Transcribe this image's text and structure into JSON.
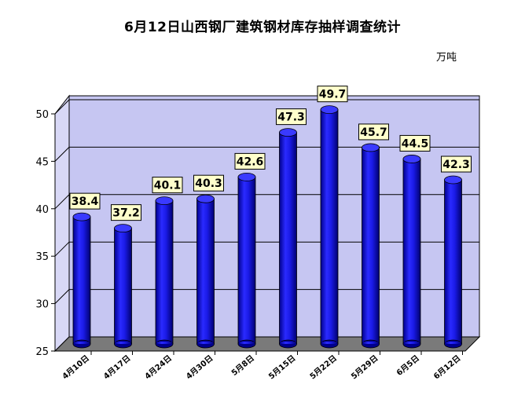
{
  "chart_data": {
    "type": "bar",
    "title": "6月12日山西钢厂建筑钢材库存抽样调查统计",
    "unit": "万吨",
    "categories": [
      "4月10日",
      "4月17日",
      "4月24日",
      "4月30日",
      "5月8日",
      "5月15日",
      "5月22日",
      "5月29日",
      "6月5日",
      "6月12日"
    ],
    "values": [
      38.4,
      37.2,
      40.1,
      40.3,
      42.6,
      47.3,
      49.7,
      45.7,
      44.5,
      42.3
    ],
    "value_labels": [
      "38.4",
      "37.2",
      "40.1",
      "40.3",
      "42.6",
      "47.3",
      "49.7",
      "45.7",
      "44.5",
      "42.3"
    ],
    "ylim": [
      25,
      50
    ],
    "yticks": [
      "25",
      "30",
      "35",
      "40",
      "45",
      "50"
    ],
    "grid": true,
    "colors": {
      "bar": "#1a1ae6",
      "bar_dark": "#00008c",
      "back_wall": "#c6c6f2",
      "floor": "#7a7a7a",
      "label_bg": "#ffffcc"
    }
  }
}
